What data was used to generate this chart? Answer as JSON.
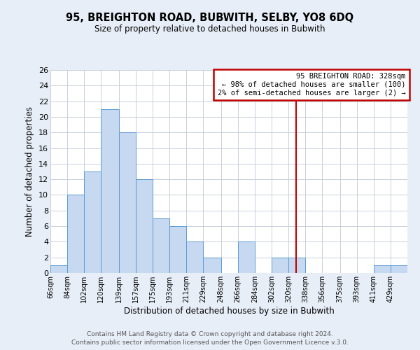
{
  "title": "95, BREIGHTON ROAD, BUBWITH, SELBY, YO8 6DQ",
  "subtitle": "Size of property relative to detached houses in Bubwith",
  "xlabel": "Distribution of detached houses by size in Bubwith",
  "ylabel": "Number of detached properties",
  "bar_color": "#c6d9f1",
  "bar_edge_color": "#5b9bd5",
  "bin_labels": [
    "66sqm",
    "84sqm",
    "102sqm",
    "120sqm",
    "139sqm",
    "157sqm",
    "175sqm",
    "193sqm",
    "211sqm",
    "229sqm",
    "248sqm",
    "266sqm",
    "284sqm",
    "302sqm",
    "320sqm",
    "338sqm",
    "356sqm",
    "375sqm",
    "393sqm",
    "411sqm",
    "429sqm"
  ],
  "bin_edges": [
    66,
    84,
    102,
    120,
    139,
    157,
    175,
    193,
    211,
    229,
    248,
    266,
    284,
    302,
    320,
    338,
    356,
    375,
    393,
    411,
    429,
    447
  ],
  "counts": [
    1,
    10,
    13,
    21,
    18,
    12,
    7,
    6,
    4,
    2,
    0,
    4,
    0,
    2,
    2,
    0,
    0,
    0,
    0,
    1,
    1
  ],
  "vline_x": 328,
  "vline_color": "#c00000",
  "ylim": [
    0,
    26
  ],
  "yticks": [
    0,
    2,
    4,
    6,
    8,
    10,
    12,
    14,
    16,
    18,
    20,
    22,
    24,
    26
  ],
  "annotation_title": "95 BREIGHTON ROAD: 328sqm",
  "annotation_line1": "← 98% of detached houses are smaller (100)",
  "annotation_line2": "2% of semi-detached houses are larger (2) →",
  "footer1": "Contains HM Land Registry data © Crown copyright and database right 2024.",
  "footer2": "Contains public sector information licensed under the Open Government Licence v.3.0.",
  "background_color": "#e8eef8",
  "plot_bg_color": "#ffffff",
  "grid_color": "#c8d0dc"
}
